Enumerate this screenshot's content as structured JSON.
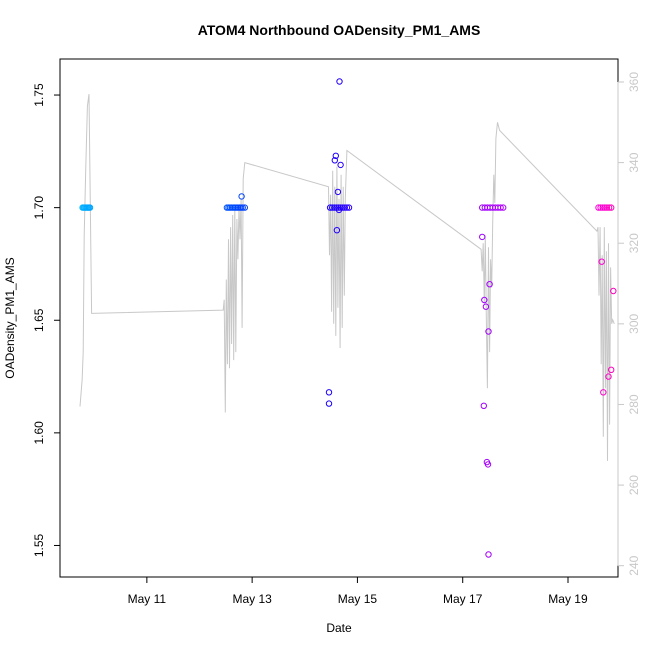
{
  "chart_data": {
    "type": "scatter",
    "title": "ATOM4 Northbound OADensity_PM1_AMS",
    "xlabel": "Date",
    "ylabel": "OADensity_PM1_AMS",
    "ylabel_right": "",
    "x_unit": "days since 2018-05-10 00:00",
    "xlim": [
      9.35,
      19.95
    ],
    "ylim": [
      1.536,
      1.766
    ],
    "ylim_right": [
      237.2,
      365.7
    ],
    "x_ticks": [
      {
        "value": 11,
        "label": "May 11"
      },
      {
        "value": 13,
        "label": "May 13"
      },
      {
        "value": 15,
        "label": "May 15"
      },
      {
        "value": 17,
        "label": "May 17"
      },
      {
        "value": 19,
        "label": "May 19"
      }
    ],
    "y_ticks": [
      {
        "value": 1.55,
        "label": "1.55"
      },
      {
        "value": 1.6,
        "label": "1.60"
      },
      {
        "value": 1.65,
        "label": "1.65"
      },
      {
        "value": 1.7,
        "label": "1.70"
      },
      {
        "value": 1.75,
        "label": "1.75"
      }
    ],
    "y_ticks_right": [
      {
        "value": 240,
        "label": "240"
      },
      {
        "value": 260,
        "label": "260"
      },
      {
        "value": 280,
        "label": "280"
      },
      {
        "value": 300,
        "label": "300"
      },
      {
        "value": 320,
        "label": "320"
      },
      {
        "value": 340,
        "label": "340"
      },
      {
        "value": 360,
        "label": "360"
      }
    ],
    "grid": false,
    "legend": "none",
    "series": [
      {
        "role": "OADensity_PM1_AMS points",
        "axis": "left",
        "points": [
          {
            "x": 9.78,
            "y": 1.7,
            "color": "#00b4ff"
          },
          {
            "x": 9.8,
            "y": 1.7,
            "color": "#00b0ff"
          },
          {
            "x": 9.82,
            "y": 1.7,
            "color": "#00aeff"
          },
          {
            "x": 9.84,
            "y": 1.7,
            "color": "#00acff"
          },
          {
            "x": 9.86,
            "y": 1.7,
            "color": "#00aaff"
          },
          {
            "x": 9.88,
            "y": 1.7,
            "color": "#00a8ff"
          },
          {
            "x": 9.9,
            "y": 1.7,
            "color": "#00a6ff"
          },
          {
            "x": 9.92,
            "y": 1.7,
            "color": "#00a4ff"
          },
          {
            "x": 12.52,
            "y": 1.7,
            "color": "#0055ff"
          },
          {
            "x": 12.55,
            "y": 1.7,
            "color": "#0053ff"
          },
          {
            "x": 12.58,
            "y": 1.7,
            "color": "#0051ff"
          },
          {
            "x": 12.61,
            "y": 1.7,
            "color": "#004fff"
          },
          {
            "x": 12.64,
            "y": 1.7,
            "color": "#004dff"
          },
          {
            "x": 12.67,
            "y": 1.7,
            "color": "#004bff"
          },
          {
            "x": 12.7,
            "y": 1.7,
            "color": "#0049ff"
          },
          {
            "x": 12.73,
            "y": 1.7,
            "color": "#0047ff"
          },
          {
            "x": 12.76,
            "y": 1.7,
            "color": "#0045ff"
          },
          {
            "x": 12.79,
            "y": 1.7,
            "color": "#0043ff"
          },
          {
            "x": 12.82,
            "y": 1.7,
            "color": "#0041ff"
          },
          {
            "x": 12.86,
            "y": 1.7,
            "color": "#003fff"
          },
          {
            "x": 12.8,
            "y": 1.705,
            "color": "#0043ff"
          },
          {
            "x": 14.48,
            "y": 1.7,
            "color": "#1a00ff"
          },
          {
            "x": 14.52,
            "y": 1.7,
            "color": "#1c00ff"
          },
          {
            "x": 14.56,
            "y": 1.7,
            "color": "#1e00ff"
          },
          {
            "x": 14.6,
            "y": 1.7,
            "color": "#2000ff"
          },
          {
            "x": 14.64,
            "y": 1.7,
            "color": "#2200ff"
          },
          {
            "x": 14.68,
            "y": 1.7,
            "color": "#2400ff"
          },
          {
            "x": 14.72,
            "y": 1.7,
            "color": "#2600ff"
          },
          {
            "x": 14.76,
            "y": 1.7,
            "color": "#2800ff"
          },
          {
            "x": 14.8,
            "y": 1.7,
            "color": "#2a00ff"
          },
          {
            "x": 14.84,
            "y": 1.7,
            "color": "#2c00ff"
          },
          {
            "x": 14.46,
            "y": 1.618,
            "color": "#1900ff"
          },
          {
            "x": 14.46,
            "y": 1.613,
            "color": "#1900ff"
          },
          {
            "x": 14.59,
            "y": 1.723,
            "color": "#1f00ff"
          },
          {
            "x": 14.57,
            "y": 1.721,
            "color": "#1e00ff"
          },
          {
            "x": 14.68,
            "y": 1.719,
            "color": "#2400ff"
          },
          {
            "x": 14.63,
            "y": 1.707,
            "color": "#2200ff"
          },
          {
            "x": 14.65,
            "y": 1.699,
            "color": "#2300ff"
          },
          {
            "x": 14.61,
            "y": 1.69,
            "color": "#2100ff"
          },
          {
            "x": 14.66,
            "y": 1.756,
            "color": "#2300ff"
          },
          {
            "x": 17.37,
            "y": 1.7,
            "color": "#a000ff"
          },
          {
            "x": 17.42,
            "y": 1.7,
            "color": "#a200ff"
          },
          {
            "x": 17.47,
            "y": 1.7,
            "color": "#a400ff"
          },
          {
            "x": 17.52,
            "y": 1.7,
            "color": "#a600ff"
          },
          {
            "x": 17.57,
            "y": 1.7,
            "color": "#a800ff"
          },
          {
            "x": 17.62,
            "y": 1.7,
            "color": "#aa00ff"
          },
          {
            "x": 17.67,
            "y": 1.7,
            "color": "#ac00ff"
          },
          {
            "x": 17.72,
            "y": 1.7,
            "color": "#ae00ff"
          },
          {
            "x": 17.77,
            "y": 1.7,
            "color": "#b000ff"
          },
          {
            "x": 17.37,
            "y": 1.687,
            "color": "#a000ff"
          },
          {
            "x": 17.51,
            "y": 1.666,
            "color": "#a600ff"
          },
          {
            "x": 17.41,
            "y": 1.659,
            "color": "#a200ff"
          },
          {
            "x": 17.44,
            "y": 1.656,
            "color": "#a300ff"
          },
          {
            "x": 17.49,
            "y": 1.645,
            "color": "#a500ff"
          },
          {
            "x": 17.4,
            "y": 1.612,
            "color": "#a200ff"
          },
          {
            "x": 17.46,
            "y": 1.587,
            "color": "#a400ff"
          },
          {
            "x": 17.48,
            "y": 1.586,
            "color": "#a500ff"
          },
          {
            "x": 17.49,
            "y": 1.546,
            "color": "#a500ff"
          },
          {
            "x": 19.58,
            "y": 1.7,
            "color": "#ff00d8"
          },
          {
            "x": 19.62,
            "y": 1.7,
            "color": "#ff00d4"
          },
          {
            "x": 19.66,
            "y": 1.7,
            "color": "#ff00d0"
          },
          {
            "x": 19.7,
            "y": 1.7,
            "color": "#ff00cc"
          },
          {
            "x": 19.74,
            "y": 1.7,
            "color": "#ff00c8"
          },
          {
            "x": 19.78,
            "y": 1.7,
            "color": "#ff00c4"
          },
          {
            "x": 19.82,
            "y": 1.7,
            "color": "#ff00c0"
          },
          {
            "x": 19.64,
            "y": 1.676,
            "color": "#ff00d2"
          },
          {
            "x": 19.86,
            "y": 1.663,
            "color": "#ff00bc"
          },
          {
            "x": 19.82,
            "y": 1.628,
            "color": "#ff00c0"
          },
          {
            "x": 19.77,
            "y": 1.625,
            "color": "#ff00c5"
          },
          {
            "x": 19.67,
            "y": 1.618,
            "color": "#ff00cf"
          }
        ]
      },
      {
        "role": "secondary trace (right axis)",
        "axis": "right",
        "color": "#c8c8c8",
        "points": [
          [
            9.73,
            279.5
          ],
          [
            9.77,
            286
          ],
          [
            9.79,
            293
          ],
          [
            9.81,
            322
          ],
          [
            9.84,
            339
          ],
          [
            9.87,
            354
          ],
          [
            9.9,
            357
          ],
          [
            9.95,
            302.6
          ],
          [
            12.45,
            303.4
          ],
          [
            12.47,
            306
          ],
          [
            12.49,
            278
          ],
          [
            12.51,
            311
          ],
          [
            12.53,
            290
          ],
          [
            12.55,
            321
          ],
          [
            12.57,
            289
          ],
          [
            12.59,
            324
          ],
          [
            12.61,
            295
          ],
          [
            12.63,
            327
          ],
          [
            12.65,
            291
          ],
          [
            12.67,
            329
          ],
          [
            12.69,
            293
          ],
          [
            12.71,
            326
          ],
          [
            12.73,
            316
          ],
          [
            12.75,
            329
          ],
          [
            12.77,
            321
          ],
          [
            12.79,
            331
          ],
          [
            12.81,
            299
          ],
          [
            12.83,
            336
          ],
          [
            12.86,
            340
          ],
          [
            14.45,
            334
          ],
          [
            14.47,
            317
          ],
          [
            14.49,
            332
          ],
          [
            14.51,
            303
          ],
          [
            14.53,
            338
          ],
          [
            14.55,
            300
          ],
          [
            14.57,
            334
          ],
          [
            14.59,
            297
          ],
          [
            14.61,
            339
          ],
          [
            14.63,
            304
          ],
          [
            14.65,
            331
          ],
          [
            14.67,
            294
          ],
          [
            14.69,
            337
          ],
          [
            14.71,
            299
          ],
          [
            14.73,
            334
          ],
          [
            14.75,
            307
          ],
          [
            14.77,
            331
          ],
          [
            14.8,
            343
          ],
          [
            17.35,
            318.5
          ],
          [
            17.37,
            313
          ],
          [
            17.39,
            320
          ],
          [
            17.41,
            305
          ],
          [
            17.43,
            322
          ],
          [
            17.45,
            300
          ],
          [
            17.47,
            284
          ],
          [
            17.49,
            319
          ],
          [
            17.51,
            293
          ],
          [
            17.53,
            316
          ],
          [
            17.55,
            309
          ],
          [
            17.57,
            325
          ],
          [
            17.59,
            337
          ],
          [
            17.61,
            330
          ],
          [
            17.63,
            346
          ],
          [
            17.66,
            350
          ],
          [
            17.7,
            348
          ],
          [
            19.55,
            323
          ],
          [
            19.57,
            324
          ],
          [
            19.59,
            307
          ],
          [
            19.61,
            324
          ],
          [
            19.63,
            290
          ],
          [
            19.65,
            317
          ],
          [
            19.67,
            272
          ],
          [
            19.69,
            324
          ],
          [
            19.71,
            284
          ],
          [
            19.73,
            318
          ],
          [
            19.75,
            266
          ],
          [
            19.77,
            320
          ],
          [
            19.79,
            275
          ],
          [
            19.81,
            314
          ],
          [
            19.83,
            300
          ],
          [
            19.85,
            301
          ],
          [
            19.88,
            300
          ]
        ]
      }
    ]
  }
}
